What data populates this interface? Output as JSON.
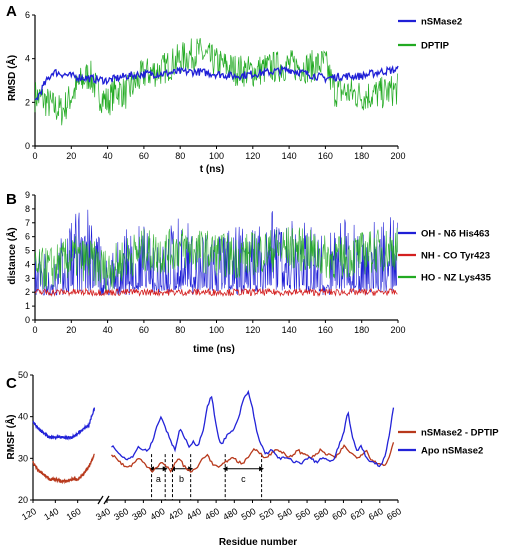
{
  "colors": {
    "blue": "#1f1fd6",
    "green": "#22aa22",
    "red": "#d42020",
    "brown": "#b8391c",
    "apoblue": "#2323d8",
    "axis": "#000000"
  },
  "chart_data": [
    {
      "panel": "A",
      "type": "line",
      "xlabel": "t (ns)",
      "ylabel": "RMSD (Å)",
      "xlim": [
        0,
        200
      ],
      "ylim": [
        0,
        6
      ],
      "xticks": [
        0,
        20,
        40,
        60,
        80,
        100,
        120,
        140,
        160,
        180,
        200
      ],
      "yticks": [
        0,
        2,
        4,
        6
      ],
      "legend_position": "top-right",
      "series": [
        {
          "name": "nSMase2",
          "color": "#1f1fd6",
          "x": [
            0,
            5,
            10,
            15,
            20,
            30,
            40,
            50,
            60,
            70,
            80,
            90,
            100,
            110,
            120,
            130,
            140,
            150,
            160,
            170,
            180,
            190,
            200
          ],
          "y": [
            2.0,
            2.8,
            3.4,
            3.3,
            3.2,
            3.1,
            3.0,
            3.2,
            3.3,
            3.3,
            3.4,
            3.4,
            3.3,
            3.2,
            3.3,
            3.4,
            3.5,
            3.3,
            3.1,
            3.2,
            3.2,
            3.4,
            3.5
          ]
        },
        {
          "name": "DPTIP",
          "color": "#22aa22",
          "x": [
            0,
            5,
            10,
            15,
            20,
            25,
            30,
            35,
            40,
            45,
            50,
            60,
            70,
            80,
            90,
            100,
            110,
            120,
            130,
            140,
            150,
            160,
            165,
            170,
            180,
            190,
            200
          ],
          "y": [
            2.3,
            2.1,
            1.8,
            1.6,
            2.3,
            2.9,
            3.3,
            2.4,
            2.0,
            2.6,
            2.4,
            3.3,
            3.5,
            4.0,
            4.3,
            3.8,
            3.5,
            3.4,
            3.6,
            3.7,
            3.6,
            3.8,
            2.5,
            2.5,
            2.3,
            2.4,
            2.6
          ]
        }
      ]
    },
    {
      "panel": "B",
      "type": "line",
      "xlabel": "time (ns)",
      "ylabel": "distance (Å)",
      "xlim": [
        0,
        200
      ],
      "ylim": [
        0,
        9
      ],
      "xticks": [
        0,
        20,
        40,
        60,
        80,
        100,
        120,
        140,
        160,
        180,
        200
      ],
      "yticks": [
        0,
        1,
        2,
        3,
        4,
        5,
        6,
        7,
        8,
        9
      ],
      "legend_position": "right",
      "series": [
        {
          "name": "OH - Nδ His463",
          "color": "#1f1fd6",
          "x": [
            0,
            10,
            20,
            25,
            30,
            40,
            50,
            60,
            70,
            80,
            90,
            100,
            110,
            120,
            130,
            140,
            150,
            160,
            170,
            180,
            190,
            200
          ],
          "y": [
            2.8,
            3.0,
            4.5,
            6.0,
            5.5,
            2.5,
            4.0,
            4.5,
            4.0,
            5.0,
            4.0,
            4.0,
            4.2,
            4.5,
            5.5,
            5.0,
            4.5,
            3.5,
            5.0,
            4.0,
            5.0,
            5.5
          ]
        },
        {
          "name": "NH - CO Tyr423",
          "color": "#d42020",
          "x": [
            0,
            20,
            40,
            60,
            80,
            100,
            120,
            140,
            160,
            180,
            200
          ],
          "y": [
            2.0,
            2.0,
            2.0,
            2.0,
            2.0,
            2.0,
            2.0,
            2.0,
            2.0,
            2.0,
            2.0
          ]
        },
        {
          "name": "HO - NZ Lys435",
          "color": "#22aa22",
          "x": [
            0,
            10,
            20,
            30,
            40,
            50,
            60,
            70,
            80,
            90,
            100,
            110,
            120,
            130,
            140,
            150,
            160,
            170,
            180,
            190,
            200
          ],
          "y": [
            3.5,
            3.8,
            4.5,
            4.3,
            3.5,
            4.5,
            5.0,
            4.8,
            5.2,
            5.0,
            4.8,
            4.5,
            4.8,
            5.0,
            5.2,
            5.0,
            4.5,
            4.5,
            4.8,
            5.0,
            5.2
          ]
        }
      ]
    },
    {
      "panel": "C",
      "type": "line",
      "xlabel": "Residue number",
      "ylabel": "RMSF (Å)",
      "ylim": [
        20,
        50
      ],
      "yticks": [
        20,
        30,
        40,
        50
      ],
      "xticks_left": [
        120,
        140,
        160
      ],
      "xticks_right": [
        340,
        360,
        380,
        400,
        420,
        440,
        460,
        480,
        500,
        520,
        540,
        560,
        580,
        600,
        620,
        640,
        660
      ],
      "xlim_left": [
        120,
        180
      ],
      "xlim_right": [
        340,
        660
      ],
      "legend_position": "right",
      "annotations": [
        {
          "label": "a",
          "x": [
            389,
            404
          ]
        },
        {
          "label": "b",
          "x": [
            412,
            432
          ]
        },
        {
          "label": "c",
          "x": [
            470,
            510
          ]
        }
      ],
      "series": [
        {
          "name": "nSMase2 - DPTIP",
          "color": "#b8391c",
          "x_left": [
            120,
            125,
            130,
            135,
            140,
            145,
            150,
            155,
            160,
            165,
            170,
            175
          ],
          "y_left": [
            29,
            27,
            26,
            25,
            25,
            24.5,
            24.5,
            25,
            25,
            26,
            28,
            31
          ],
          "x_right": [
            345,
            350,
            355,
            360,
            365,
            370,
            375,
            380,
            385,
            390,
            395,
            400,
            405,
            410,
            415,
            420,
            425,
            430,
            435,
            440,
            445,
            450,
            455,
            460,
            465,
            470,
            475,
            480,
            485,
            490,
            495,
            500,
            505,
            510,
            515,
            520,
            525,
            530,
            535,
            540,
            545,
            550,
            555,
            560,
            565,
            570,
            575,
            580,
            585,
            590,
            595,
            600,
            605,
            610,
            615,
            620,
            625,
            630,
            635,
            640,
            645,
            650,
            655
          ],
          "y_right": [
            31,
            30,
            29,
            28,
            28,
            29,
            30,
            29,
            28,
            27,
            28,
            29,
            28,
            27,
            29,
            30,
            28,
            27,
            27,
            28,
            30,
            31,
            29,
            28,
            28,
            29,
            30,
            30,
            29,
            29,
            30,
            32,
            32,
            31,
            30,
            31,
            32,
            32,
            31,
            30,
            31,
            32,
            31,
            31,
            30,
            31,
            32,
            31,
            31,
            30,
            31,
            33,
            32,
            31,
            30,
            31,
            32,
            30,
            29,
            29,
            28,
            30,
            34
          ]
        },
        {
          "name": "Apo nSMase2",
          "color": "#2323d8",
          "x_left": [
            120,
            125,
            130,
            135,
            140,
            145,
            150,
            155,
            160,
            165,
            170,
            175
          ],
          "y_left": [
            39,
            37,
            36,
            35,
            35,
            35,
            35,
            35,
            36,
            37,
            38,
            42
          ],
          "x_right": [
            345,
            350,
            355,
            360,
            365,
            370,
            375,
            380,
            385,
            390,
            395,
            400,
            405,
            410,
            415,
            420,
            425,
            430,
            435,
            440,
            445,
            450,
            455,
            460,
            465,
            470,
            475,
            480,
            485,
            490,
            495,
            500,
            505,
            510,
            515,
            520,
            525,
            530,
            535,
            540,
            545,
            550,
            555,
            560,
            565,
            570,
            575,
            580,
            585,
            590,
            595,
            600,
            605,
            610,
            615,
            620,
            625,
            630,
            635,
            640,
            645,
            650,
            655
          ],
          "y_right": [
            33,
            32,
            31,
            30,
            30,
            31,
            33,
            32,
            32,
            34,
            38,
            40,
            37,
            34,
            32,
            37,
            35,
            33,
            34,
            33,
            36,
            42,
            45,
            38,
            33,
            35,
            36,
            37,
            40,
            44,
            46,
            42,
            36,
            33,
            31,
            32,
            31,
            30,
            30,
            30,
            29,
            29,
            29,
            30,
            30,
            29,
            30,
            30,
            29,
            30,
            33,
            36,
            41,
            35,
            32,
            33,
            30,
            29,
            29,
            28,
            30,
            35,
            42
          ]
        }
      ]
    }
  ]
}
